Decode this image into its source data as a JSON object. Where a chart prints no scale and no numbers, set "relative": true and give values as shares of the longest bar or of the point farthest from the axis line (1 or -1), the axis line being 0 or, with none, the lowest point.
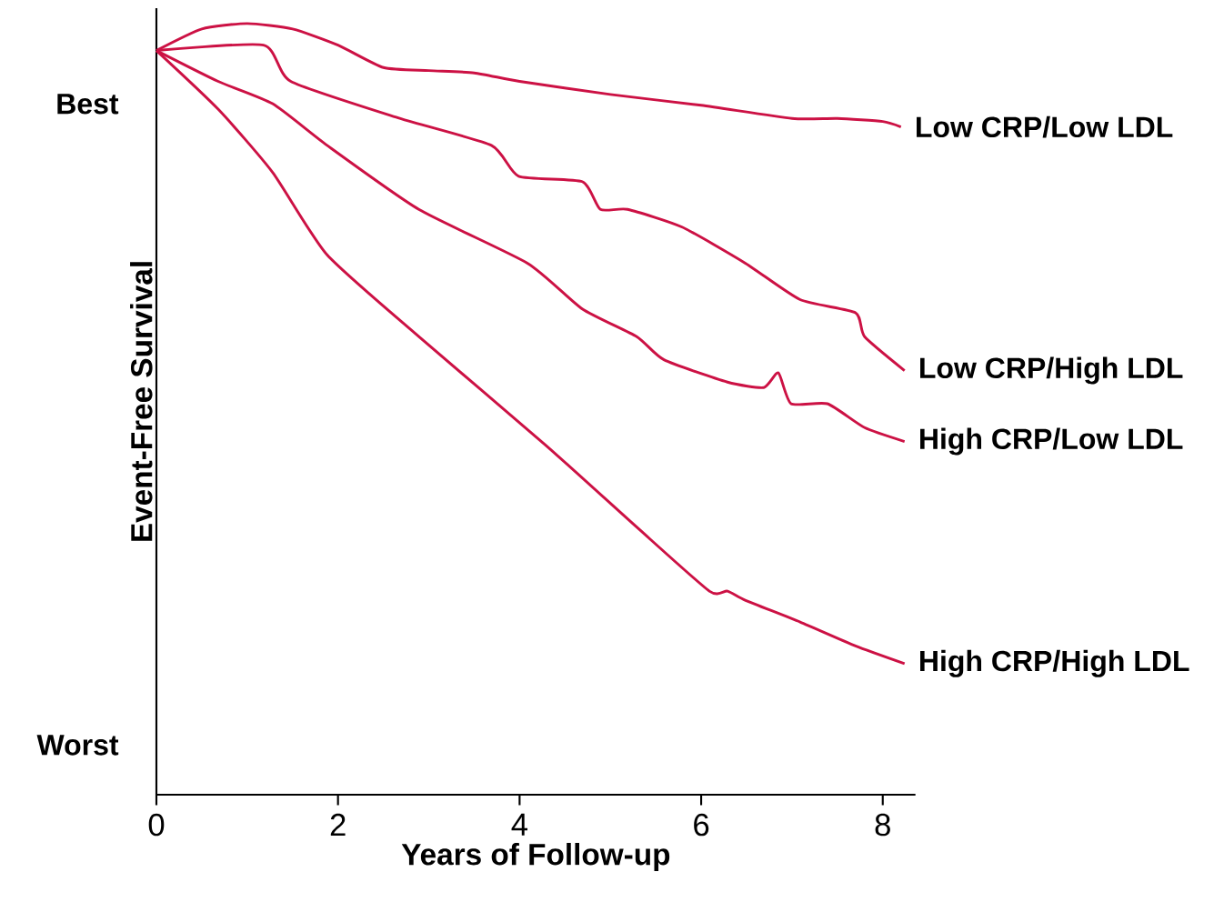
{
  "chart_data": {
    "type": "line",
    "relative": true,
    "xlabel": "Years of Follow-up",
    "ylabel": "Event-Free Survival",
    "annotations": [
      "Best",
      "Worst"
    ],
    "xlim": [
      0,
      8.36
    ],
    "xticks": [
      0,
      2,
      4,
      6,
      8
    ],
    "grid": false,
    "marker": "none",
    "line_style": "solid",
    "series": [
      {
        "name": "Low CRP/Low LDL",
        "color": "#cc1144",
        "x": [
          0,
          0.5,
          1,
          1.5,
          2,
          2.5,
          3,
          3.5,
          4,
          5,
          6,
          7,
          7.5,
          8,
          8.2
        ],
        "values": [
          0.965,
          0.993,
          1,
          0.993,
          0.972,
          0.943,
          0.939,
          0.936,
          0.925,
          0.908,
          0.894,
          0.877,
          0.877,
          0.873,
          0.866
        ]
      },
      {
        "name": "Low CRP/High LDL",
        "color": "#cc1144",
        "x": [
          0,
          1.18,
          1.48,
          2.68,
          3.69,
          3.99,
          4.69,
          4.89,
          5.19,
          5.79,
          6.49,
          7.09,
          7.7,
          7.8,
          8.24
        ],
        "values": [
          0.965,
          0.972,
          0.925,
          0.877,
          0.842,
          0.802,
          0.795,
          0.759,
          0.759,
          0.736,
          0.689,
          0.642,
          0.625,
          0.594,
          0.55
        ]
      },
      {
        "name": "High CRP/Low LDL",
        "color": "#cc1144",
        "x": [
          0,
          0.68,
          1.28,
          1.88,
          2.89,
          4.09,
          4.69,
          5.29,
          5.59,
          6.29,
          6.69,
          6.85,
          6.99,
          7.39,
          7.8,
          8.24
        ],
        "values": [
          0.965,
          0.925,
          0.896,
          0.842,
          0.759,
          0.689,
          0.63,
          0.594,
          0.564,
          0.535,
          0.528,
          0.547,
          0.507,
          0.507,
          0.476,
          0.458
        ]
      },
      {
        "name": "High CRP/High LDL",
        "color": "#cc1144",
        "x": [
          0,
          0.68,
          1.28,
          1.88,
          2.89,
          4.29,
          5.29,
          6.09,
          6.29,
          6.49,
          7.09,
          7.7,
          8.24
        ],
        "values": [
          0.965,
          0.889,
          0.807,
          0.7,
          0.594,
          0.453,
          0.347,
          0.264,
          0.264,
          0.252,
          0.224,
          0.193,
          0.17
        ]
      }
    ]
  }
}
